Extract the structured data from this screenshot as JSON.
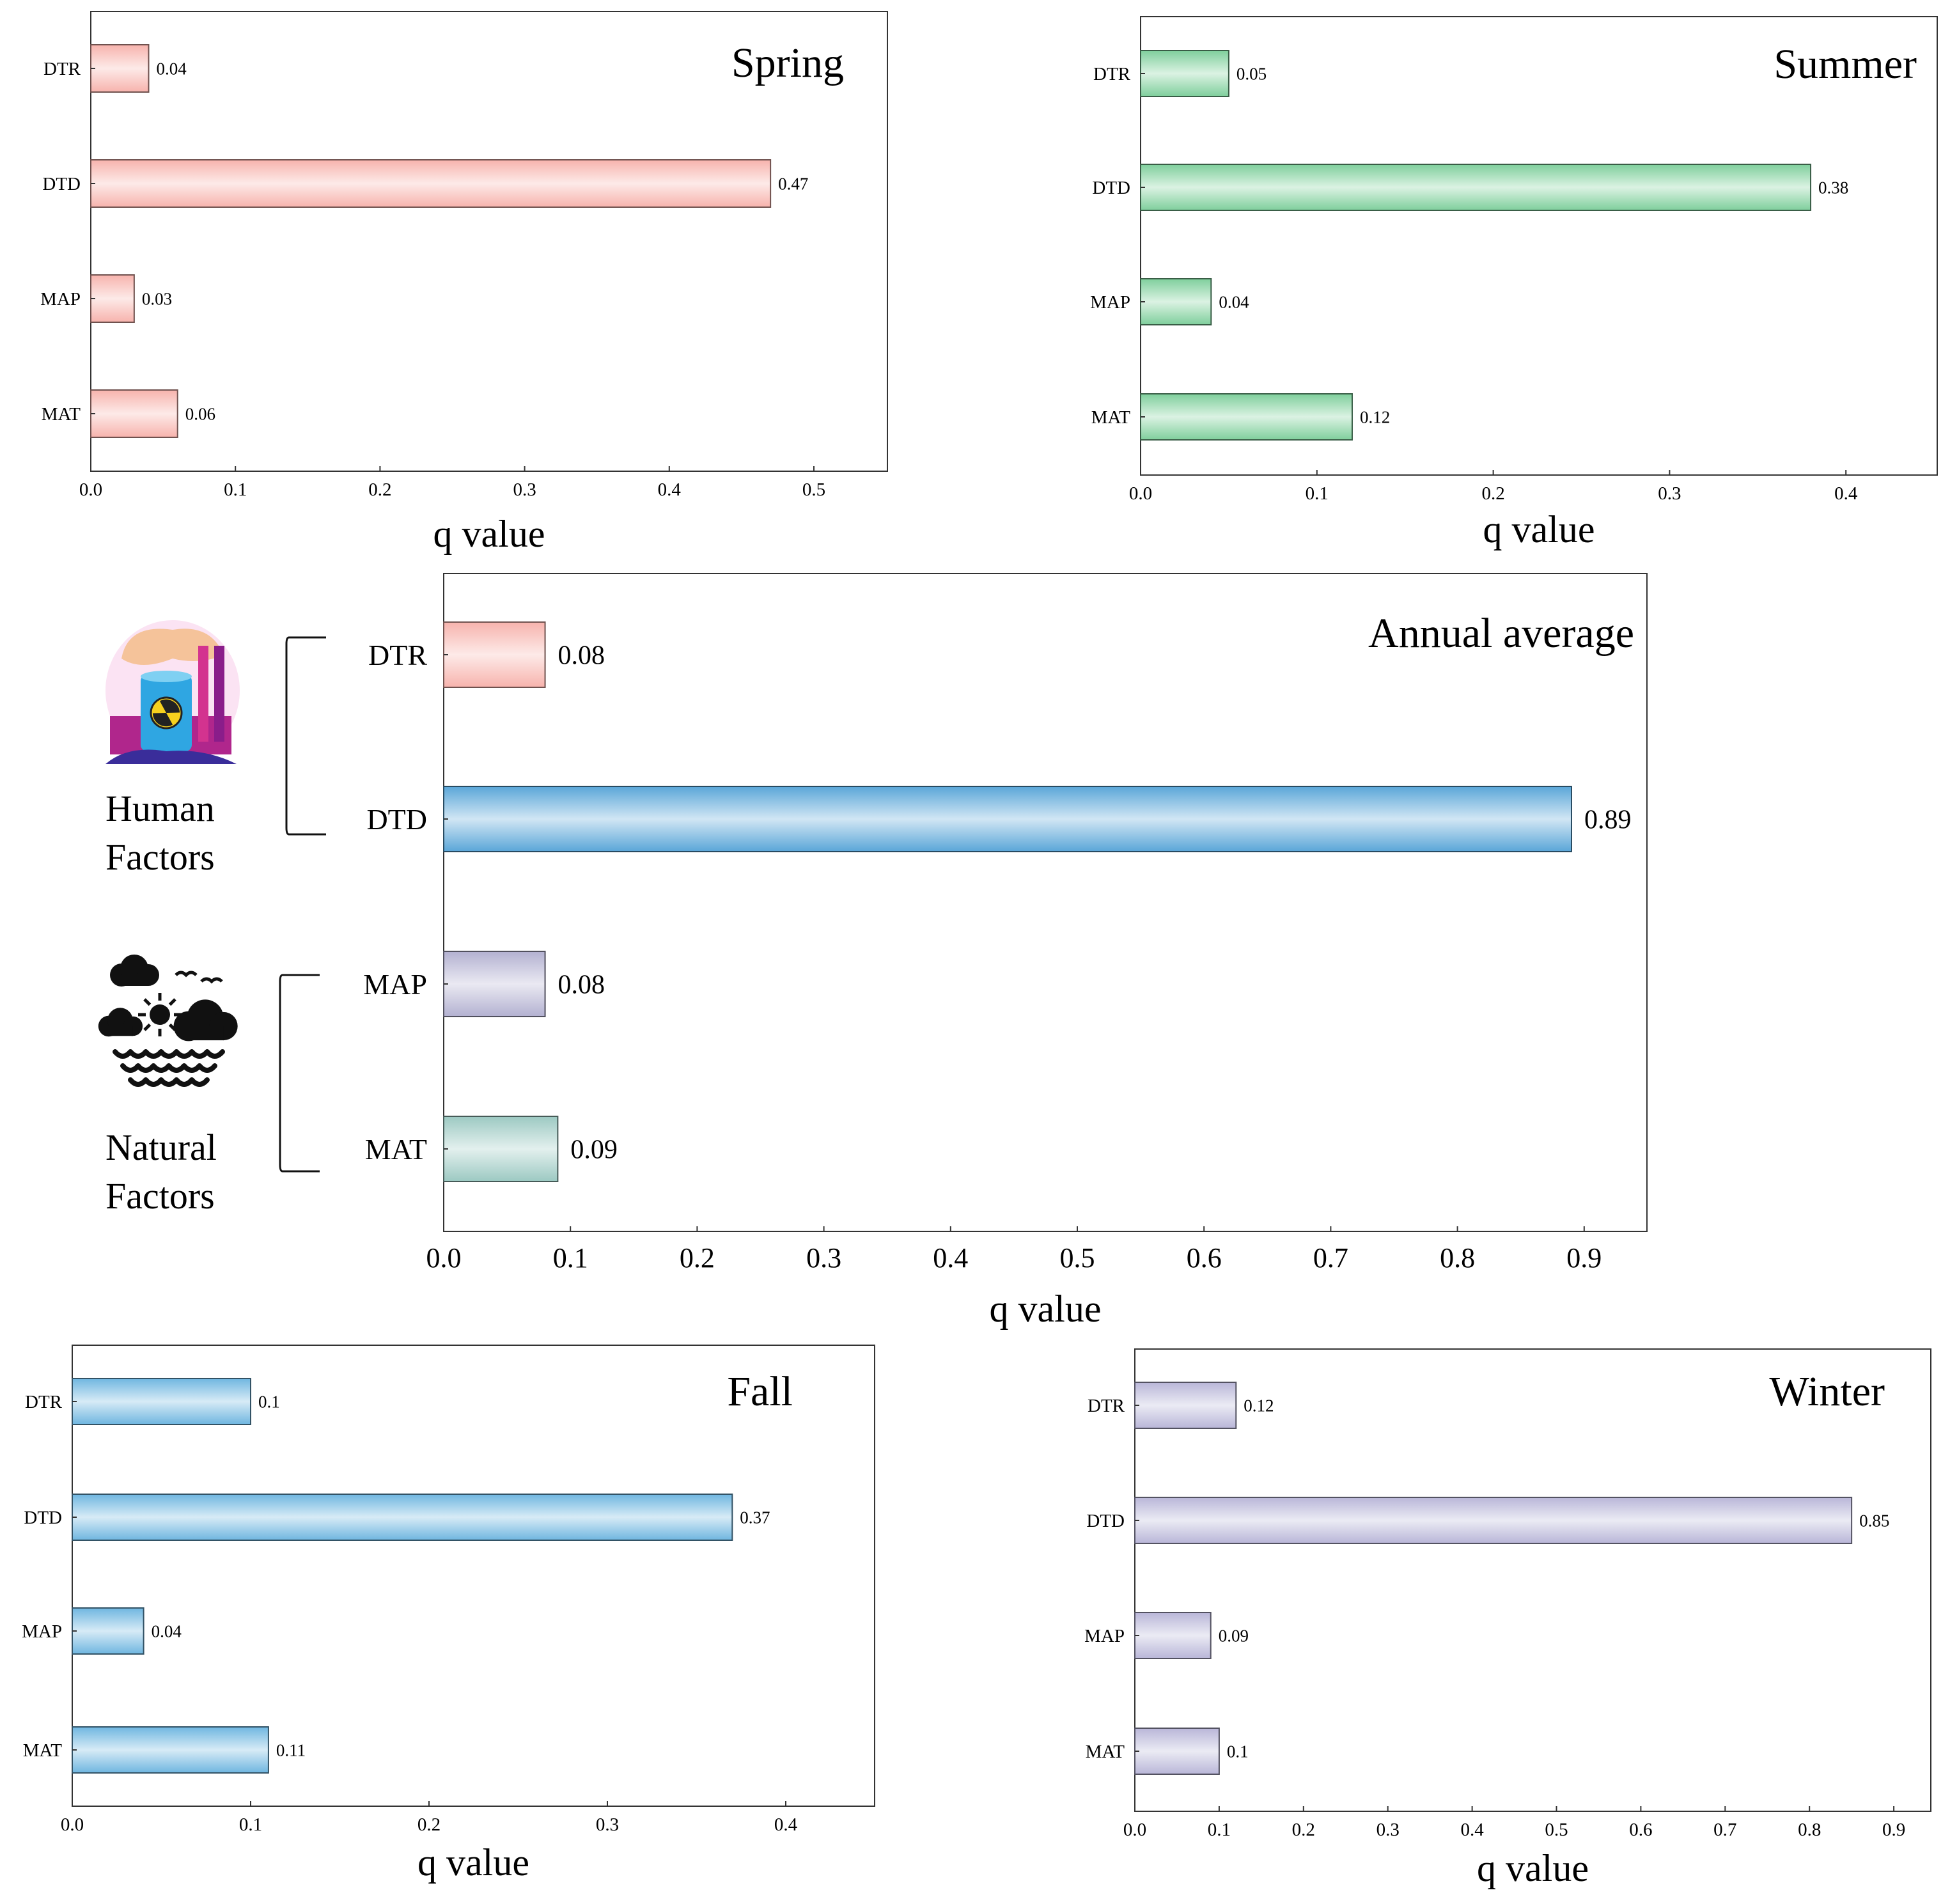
{
  "chart_data": [
    {
      "id": "spring",
      "type": "bar",
      "orientation": "horizontal",
      "title": "Spring",
      "xlabel": "q value",
      "ylabel": "",
      "categories": [
        "DTR",
        "DTD",
        "MAP",
        "MAT"
      ],
      "values": [
        0.04,
        0.47,
        0.03,
        0.06
      ],
      "value_labels": [
        "0.04",
        "0.47",
        "0.03",
        "0.06"
      ],
      "xlim": [
        0,
        0.55
      ],
      "xticks": [
        0.0,
        0.1,
        0.2,
        0.3,
        0.4,
        0.5
      ],
      "xtick_labels": [
        "0.0",
        "0.1",
        "0.2",
        "0.3",
        "0.4",
        "0.5"
      ],
      "colors": [
        "#f7b3ad",
        "#f7b3ad",
        "#f7b3ad",
        "#f7b3ad"
      ],
      "grid": false,
      "legend": "none"
    },
    {
      "id": "summer",
      "type": "bar",
      "orientation": "horizontal",
      "title": "Summer",
      "xlabel": "q value",
      "ylabel": "",
      "categories": [
        "DTR",
        "DTD",
        "MAP",
        "MAT"
      ],
      "values": [
        0.05,
        0.38,
        0.04,
        0.12
      ],
      "value_labels": [
        "0.05",
        "0.38",
        "0.04",
        "0.12"
      ],
      "xlim": [
        0,
        0.45
      ],
      "xticks": [
        0.0,
        0.1,
        0.2,
        0.3,
        0.4
      ],
      "xtick_labels": [
        "0.0",
        "0.1",
        "0.2",
        "0.3",
        "0.4"
      ],
      "colors": [
        "#7fcf9c",
        "#7fcf9c",
        "#7fcf9c",
        "#7fcf9c"
      ],
      "grid": false,
      "legend": "none"
    },
    {
      "id": "annual",
      "type": "bar",
      "orientation": "horizontal",
      "title": "Annual average",
      "xlabel": "q value",
      "ylabel": "",
      "categories": [
        "DTR",
        "DTD",
        "MAP",
        "MAT"
      ],
      "values": [
        0.08,
        0.89,
        0.08,
        0.09
      ],
      "value_labels": [
        "0.08",
        "0.89",
        "0.08",
        "0.09"
      ],
      "xlim": [
        0,
        0.95
      ],
      "xticks": [
        0.0,
        0.1,
        0.2,
        0.3,
        0.4,
        0.5,
        0.6,
        0.7,
        0.8,
        0.9
      ],
      "xtick_labels": [
        "0.0",
        "0.1",
        "0.2",
        "0.3",
        "0.4",
        "0.5",
        "0.6",
        "0.7",
        "0.8",
        "0.9"
      ],
      "colors": [
        "#f7b3ad",
        "#5aa6d8",
        "#b3b1d1",
        "#9cc9c2"
      ],
      "grid": false,
      "legend": "none",
      "groups": [
        {
          "label_lines": [
            "Human",
            "Factors"
          ],
          "icon": "factory-radiation-icon",
          "members": [
            "DTR",
            "DTD"
          ]
        },
        {
          "label_lines": [
            "Natural",
            "Factors"
          ],
          "icon": "weather-nature-icon",
          "members": [
            "MAP",
            "MAT"
          ]
        }
      ]
    },
    {
      "id": "fall",
      "type": "bar",
      "orientation": "horizontal",
      "title": "Fall",
      "xlabel": "q value",
      "ylabel": "",
      "categories": [
        "DTR",
        "DTD",
        "MAP",
        "MAT"
      ],
      "values": [
        0.1,
        0.37,
        0.04,
        0.11
      ],
      "value_labels": [
        "0.1",
        "0.37",
        "0.04",
        "0.11"
      ],
      "xlim": [
        0,
        0.45
      ],
      "xticks": [
        0.0,
        0.1,
        0.2,
        0.3,
        0.4
      ],
      "xtick_labels": [
        "0.0",
        "0.1",
        "0.2",
        "0.3",
        "0.4"
      ],
      "colors": [
        "#6fb6e0",
        "#6fb6e0",
        "#6fb6e0",
        "#6fb6e0"
      ],
      "grid": false,
      "legend": "none"
    },
    {
      "id": "winter",
      "type": "bar",
      "orientation": "horizontal",
      "title": "Winter",
      "xlabel": "q value",
      "ylabel": "",
      "categories": [
        "DTR",
        "DTD",
        "MAP",
        "MAT"
      ],
      "values": [
        0.12,
        0.85,
        0.09,
        0.1
      ],
      "value_labels": [
        "0.12",
        "0.85",
        "0.09",
        "0.1"
      ],
      "xlim": [
        0,
        0.95
      ],
      "xticks": [
        0.0,
        0.1,
        0.2,
        0.3,
        0.4,
        0.5,
        0.6,
        0.7,
        0.8,
        0.9
      ],
      "xtick_labels": [
        "0.0",
        "0.1",
        "0.2",
        "0.3",
        "0.4",
        "0.5",
        "0.6",
        "0.7",
        "0.8",
        "0.9"
      ],
      "colors": [
        "#b9b6d8",
        "#b9b6d8",
        "#b9b6d8",
        "#b9b6d8"
      ],
      "grid": false,
      "legend": "none"
    }
  ]
}
